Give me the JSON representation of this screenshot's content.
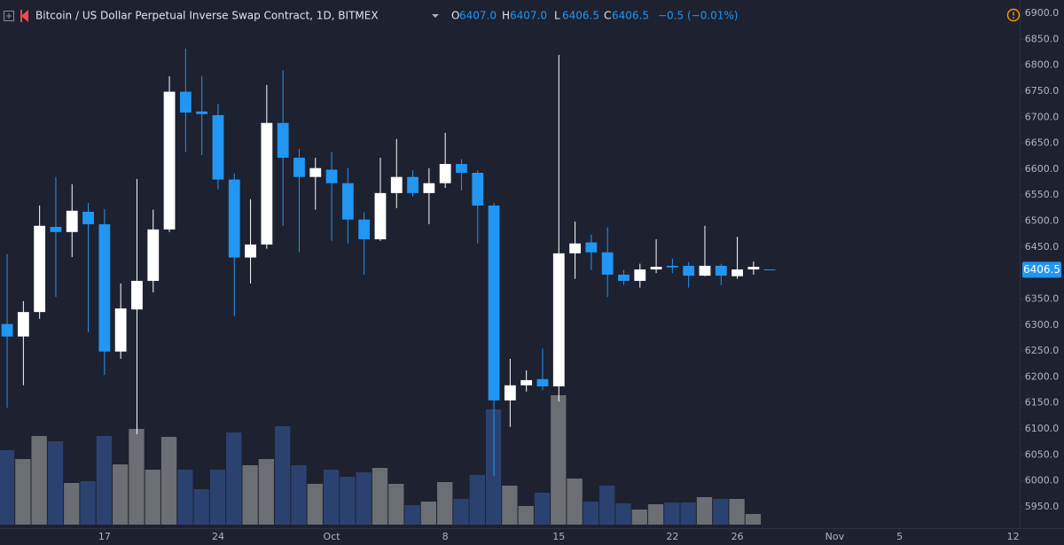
{
  "chart_data": {
    "type": "candlestick",
    "title": "Bitcoin / US Dollar Perpetual Inverse Swap Contract, 1D, BITMEX",
    "legend": [
      {
        "key": "O",
        "text": "6407.0"
      },
      {
        "key": "H",
        "text": "6407.0"
      },
      {
        "key": "L",
        "text": "6406.5"
      },
      {
        "key": "C",
        "text": "6406.5"
      }
    ],
    "change": "−0.5 (−0.01%)",
    "up_color": "#ffffff",
    "down_color": "#2196f3",
    "volume_up_color": "#6b6e73",
    "volume_down_color": "#2b4270",
    "open": [
      6302,
      6278,
      6325,
      6489,
      6479,
      6518,
      6494,
      6249,
      6330,
      6385,
      6484,
      6749,
      6711,
      6704,
      6580,
      6430,
      6455,
      6689,
      6622,
      6585,
      6599,
      6573,
      6503,
      6465,
      6554,
      6585,
      6554,
      6573,
      6610,
      6593,
      6530,
      6155,
      6184,
      6196,
      6182,
      6438,
      6459,
      6440,
      6397,
      6385,
      6407,
      6414,
      6414,
      6395,
      6414,
      6394,
      6407,
      6407
    ],
    "high": [
      6436,
      6346,
      6530,
      6585,
      6571,
      6535,
      6523,
      6380,
      6581,
      6522,
      6779,
      6832,
      6779,
      6726,
      6592,
      6542,
      6762,
      6790,
      6639,
      6622,
      6633,
      6602,
      6517,
      6622,
      6658,
      6598,
      6602,
      6670,
      6619,
      6598,
      6535,
      6235,
      6213,
      6255,
      6820,
      6499,
      6474,
      6488,
      6406,
      6418,
      6465,
      6428,
      6421,
      6491,
      6418,
      6470,
      6422,
      6407
    ],
    "low": [
      6141,
      6184,
      6312,
      6354,
      6431,
      6286,
      6204,
      6235,
      6090,
      6363,
      6479,
      6633,
      6627,
      6561,
      6317,
      6380,
      6447,
      6491,
      6440,
      6522,
      6462,
      6457,
      6397,
      6462,
      6525,
      6547,
      6494,
      6564,
      6559,
      6457,
      6010,
      6104,
      6172,
      6175,
      6153,
      6389,
      6406,
      6354,
      6377,
      6372,
      6400,
      6400,
      6372,
      6394,
      6377,
      6389,
      6397,
      6406.5
    ],
    "close": [
      6278,
      6325,
      6491,
      6479,
      6520,
      6494,
      6249,
      6332,
      6385,
      6484,
      6749,
      6709,
      6706,
      6580,
      6430,
      6455,
      6689,
      6622,
      6585,
      6602,
      6573,
      6503,
      6465,
      6554,
      6585,
      6554,
      6573,
      6610,
      6593,
      6530,
      6155,
      6184,
      6194,
      6182,
      6438,
      6457,
      6440,
      6397,
      6385,
      6407,
      6412,
      6411,
      6395,
      6414,
      6395,
      6407,
      6412,
      6406.5
    ],
    "volume": [
      84,
      74,
      100,
      94,
      47,
      49,
      100,
      68,
      108,
      62,
      99,
      62,
      40,
      62,
      104,
      67,
      74,
      111,
      67,
      46,
      62,
      54,
      59,
      64,
      46,
      22,
      26,
      48,
      29,
      56,
      130,
      44,
      21,
      36,
      146,
      52,
      26,
      44,
      24,
      17,
      23,
      25,
      25,
      31,
      29,
      29,
      12,
      null
    ],
    "last_price": {
      "value": 6406.5,
      "label": "6406.5"
    },
    "xlim": [
      -0.44,
      62.4
    ],
    "xticks": [
      {
        "value": 6,
        "label": "17"
      },
      {
        "value": 13,
        "label": "24"
      },
      {
        "value": 20,
        "label": "Oct"
      },
      {
        "value": 27,
        "label": "8"
      },
      {
        "value": 34,
        "label": "15"
      },
      {
        "value": 41,
        "label": "22"
      },
      {
        "value": 45,
        "label": "26"
      },
      {
        "value": 51,
        "label": "Nov"
      },
      {
        "value": 55,
        "label": "5"
      },
      {
        "value": 62,
        "label": "12"
      }
    ],
    "ylim": [
      5950,
      6900
    ],
    "yticks": [
      {
        "value": 5950,
        "label": "5950.0"
      },
      {
        "value": 6000,
        "label": "6000.0"
      },
      {
        "value": 6050,
        "label": "6050.0"
      },
      {
        "value": 6100,
        "label": "6100.0"
      },
      {
        "value": 6150,
        "label": "6150.0"
      },
      {
        "value": 6200,
        "label": "6200.0"
      },
      {
        "value": 6250,
        "label": "6250.0"
      },
      {
        "value": 6300,
        "label": "6300.0"
      },
      {
        "value": 6350,
        "label": "6350.0"
      },
      {
        "value": 6400,
        "label": "6400.0"
      },
      {
        "value": 6450,
        "label": "6450.0"
      },
      {
        "value": 6500,
        "label": "6500.0"
      },
      {
        "value": 6550,
        "label": "6550.0"
      },
      {
        "value": 6600,
        "label": "6600.0"
      },
      {
        "value": 6650,
        "label": "6650.0"
      },
      {
        "value": 6700,
        "label": "6700.0"
      },
      {
        "value": 6750,
        "label": "6750.0"
      },
      {
        "value": 6800,
        "label": "6800.0"
      },
      {
        "value": 6850,
        "label": "6850.0"
      },
      {
        "value": 6900,
        "label": "6900.0"
      }
    ],
    "grid": false
  }
}
